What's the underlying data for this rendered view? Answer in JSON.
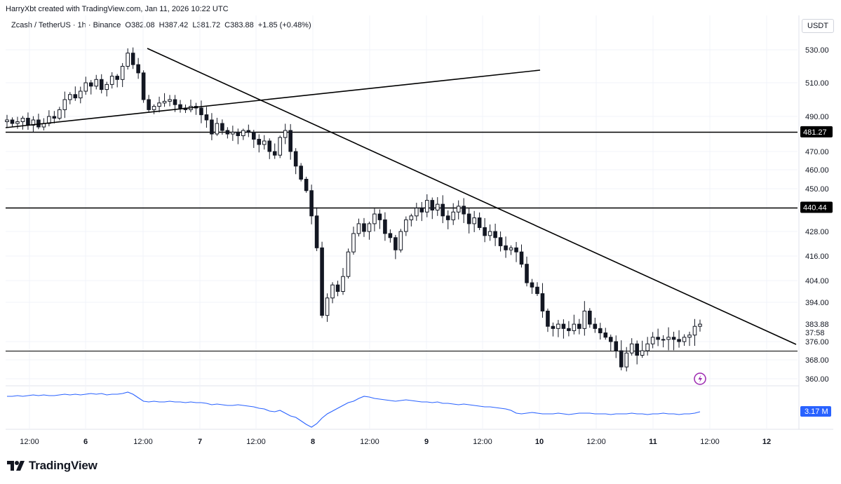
{
  "header": {
    "created_by": "HarryXbt created with TradingView.com, Jan 11, 2026 10:22 UTC",
    "symbol": "Zcash / TetherUS · 1h · Binance",
    "open": "O382.08",
    "high": "H387.42",
    "low": "L381.72",
    "close": "C383.88",
    "change": "+1.85 (+0.48%)"
  },
  "currency_button": "USDT",
  "brand": {
    "name": "TradingView"
  },
  "colors": {
    "up": "#131722",
    "down": "#131722",
    "line": "#000000",
    "volume": "#2962ff",
    "grid": "#f0f3fa"
  },
  "chart_data": {
    "type": "candlestick",
    "symbol": "ZECUSDT",
    "timeframe": "1h",
    "y_ticks": [
      530.0,
      510.0,
      490.0,
      470.0,
      460.0,
      450.0,
      428.0,
      416.0,
      404.0,
      394.0,
      376.0,
      368.0,
      360.0
    ],
    "y_tick_labels": [
      "530.00",
      "510.00",
      "490.00",
      "470.00",
      "460.00",
      "450.00",
      "428.00",
      "416.00",
      "404.00",
      "394.00",
      "376.00",
      "368.00",
      "360.00"
    ],
    "x_ticks": [
      "12:00",
      "6",
      "12:00",
      "7",
      "12:00",
      "8",
      "12:00",
      "9",
      "12:00",
      "10",
      "12:00",
      "11",
      "12:00",
      "12"
    ],
    "price_labels": {
      "resistance_upper": "481.27",
      "resistance_lower": "440.44",
      "last_price": "383.88",
      "countdown": "37:58"
    },
    "volume_indicator": {
      "label": "3.17 M"
    },
    "horizontal_levels": [
      481.27,
      440.44,
      372.0
    ],
    "close_series": [
      488,
      486,
      487,
      489,
      485,
      488,
      484,
      486,
      490,
      489,
      494,
      500,
      503,
      501,
      505,
      510,
      508,
      512,
      506,
      509,
      514,
      512,
      520,
      528,
      521,
      516,
      500,
      494,
      496,
      498,
      499,
      500,
      497,
      495,
      494,
      496,
      495,
      491,
      488,
      480,
      486,
      482,
      480,
      481,
      479,
      482,
      481,
      477,
      474,
      476,
      470,
      468,
      478,
      482,
      470,
      462,
      455,
      449,
      436,
      420,
      388,
      396,
      402,
      399,
      406,
      418,
      427,
      432,
      428,
      432,
      437,
      434,
      427,
      425,
      419,
      428,
      434,
      436,
      440,
      438,
      444,
      439,
      442,
      436,
      434,
      438,
      441,
      437,
      432,
      435,
      430,
      426,
      428,
      425,
      421,
      419,
      420,
      418,
      412,
      403,
      401,
      398,
      390,
      383,
      382,
      384,
      382,
      381,
      384,
      382,
      390,
      384,
      382,
      380,
      378,
      376,
      372,
      365,
      371,
      375,
      370,
      372,
      375,
      378,
      377,
      377,
      378,
      377,
      376,
      378,
      379,
      383,
      384
    ],
    "trendlines": [
      {
        "name": "descending-resistance",
        "from": [
          "Jan 6 12:00",
          530
        ],
        "to": [
          "Jan 12 06:00",
          376
        ]
      },
      {
        "name": "ascending-support",
        "from": [
          "Jan 5 08:00",
          483
        ],
        "to": [
          "Jan 9 12:00",
          517
        ]
      }
    ]
  }
}
